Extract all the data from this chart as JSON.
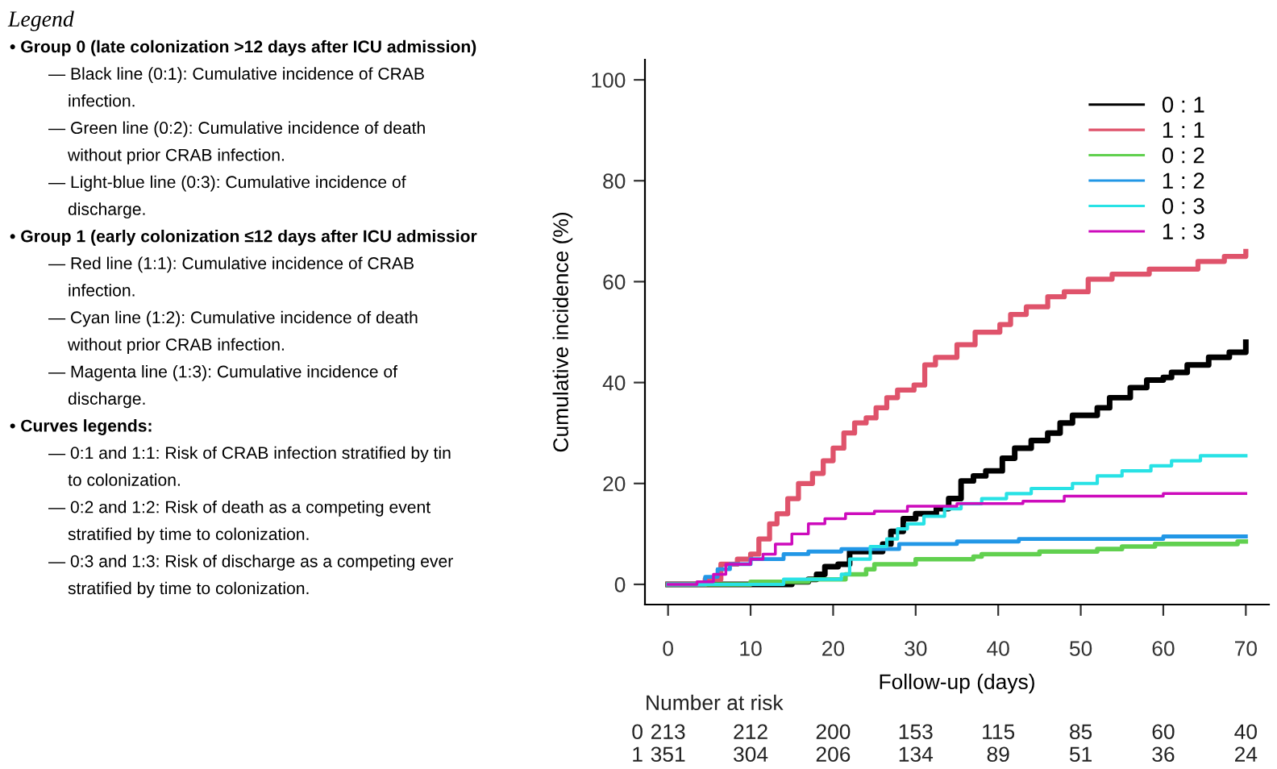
{
  "chart_data": [
    {
      "type": "other",
      "annotations": [
        "Legend",
        "• Group 0 (late colonization >12 days after ICU admission)",
        "— Black line (0:1): Cumulative incidence of CRAB\ninfection.",
        "— Green line (0:2): Cumulative incidence of death\nwithout prior CRAB infection.",
        "— Light-blue line (0:3): Cumulative incidence of\ndischarge.",
        "• Group 1 (early colonization ≤12 days after ICU admissior",
        "— Red line (1:1): Cumulative incidence of CRAB\ninfection.",
        "— Cyan line (1:2): Cumulative incidence of death\nwithout prior CRAB infection.",
        "— Magenta line (1:3): Cumulative incidence of\ndischarge.",
        "• Curves legends:",
        "— 0:1 and 1:1: Risk of CRAB infection stratified by tin\nto colonization.",
        "— 0:2 and 1:2: Risk of death as a competing event\nstratified by time to colonization.",
        "— 0:3 and 1:3: Risk of discharge as a competing ever\nstratified by time to colonization."
      ]
    },
    {
      "type": "step",
      "xlabel": "Follow-up (days)",
      "ylabel": "Cumulative incidence (%)",
      "xlim": [
        -2.8,
        72.8
      ],
      "ylim": [
        -4,
        104
      ],
      "xticks": [
        0,
        10,
        20,
        30,
        40,
        50,
        60,
        70
      ],
      "yticks": [
        0,
        20,
        40,
        60,
        80,
        100
      ],
      "grid": false,
      "legend": "top right",
      "annotations": [
        "Number at risk",
        "0 213 212 200 153 115 85 60 40",
        "1 351 304 206 134 89 51 36 24"
      ],
      "series": [
        {
          "name": "0 : 1",
          "color": "#000000",
          "x": [
            0,
            15,
            17,
            18,
            19,
            20.6,
            22,
            26,
            27,
            28.5,
            30,
            32.5,
            34,
            35.5,
            37,
            38.5,
            40.5,
            42,
            44,
            46,
            47.5,
            49,
            52,
            53.5,
            56,
            58,
            60,
            61,
            62.9,
            65.5,
            68,
            70
          ],
          "values": [
            0,
            0.5,
            1,
            2,
            3.5,
            4,
            6.5,
            8,
            10.5,
            13,
            14,
            15,
            17,
            20.5,
            21.5,
            22.5,
            25,
            27,
            28.5,
            30,
            32,
            33.5,
            35,
            37,
            39,
            40.5,
            41,
            42,
            43.5,
            45,
            46,
            48
          ]
        },
        {
          "name": "1 : 1",
          "color": "#df536b",
          "x": [
            0,
            4.5,
            6.4,
            8.4,
            10,
            11,
            12.3,
            13.2,
            14.5,
            15.8,
            17.5,
            18.8,
            20,
            21.3,
            22.6,
            24,
            25.2,
            26.5,
            27.8,
            29.8,
            31.1,
            32.4,
            35,
            37.2,
            40.2,
            41.5,
            43.4,
            46,
            48,
            50.9,
            53.8,
            58.3,
            64.2,
            67.4,
            70
          ],
          "values": [
            0,
            1,
            4,
            5,
            6,
            9,
            12,
            14,
            17,
            20,
            22,
            24.5,
            27,
            30,
            32,
            33,
            35,
            37,
            38.5,
            39.5,
            43.5,
            45,
            47.5,
            50,
            51.5,
            53.5,
            55,
            57,
            58,
            60.5,
            61.5,
            62.5,
            64,
            65,
            66
          ]
        },
        {
          "name": "0 : 2",
          "color": "#61d04f",
          "x": [
            0,
            10,
            17,
            21.5,
            24,
            25,
            30,
            37,
            38,
            45,
            52,
            55,
            59,
            69,
            70
          ],
          "values": [
            0,
            0.5,
            1,
            2,
            3,
            4,
            5,
            5.5,
            6,
            6.5,
            7,
            7.5,
            8,
            8.5,
            8.5
          ]
        },
        {
          "name": "1 : 2",
          "color": "#2297e6",
          "x": [
            0,
            4.5,
            6,
            7.5,
            10,
            14,
            17,
            21,
            28,
            35,
            42.5,
            60,
            70
          ],
          "values": [
            0,
            1.5,
            3,
            4,
            5,
            6,
            6.5,
            7,
            8,
            8.5,
            9,
            9.5,
            9.5
          ]
        },
        {
          "name": "0 : 3",
          "color": "#28e2e5",
          "x": [
            0,
            14,
            21,
            22,
            24.5,
            26.5,
            27.8,
            29,
            31,
            33.5,
            35.5,
            38,
            41,
            44,
            49,
            52,
            55,
            58.5,
            61,
            64.5,
            70
          ],
          "values": [
            0,
            1,
            2,
            5,
            7.5,
            9,
            11,
            12,
            13.5,
            15,
            16,
            17,
            18,
            19,
            20,
            21.5,
            22.5,
            23.5,
            24.5,
            25.5,
            25.5
          ]
        },
        {
          "name": "1 : 3",
          "color": "#cd0bbc",
          "x": [
            0,
            3.5,
            5.5,
            7,
            10,
            11.5,
            13,
            15,
            17,
            19,
            21.5,
            25,
            29,
            35,
            43,
            48,
            60,
            70
          ],
          "values": [
            0,
            0.5,
            2,
            4,
            5,
            6,
            8,
            10,
            12,
            13,
            14,
            14.5,
            15.5,
            16,
            16.5,
            17.5,
            18,
            18
          ]
        }
      ]
    }
  ]
}
